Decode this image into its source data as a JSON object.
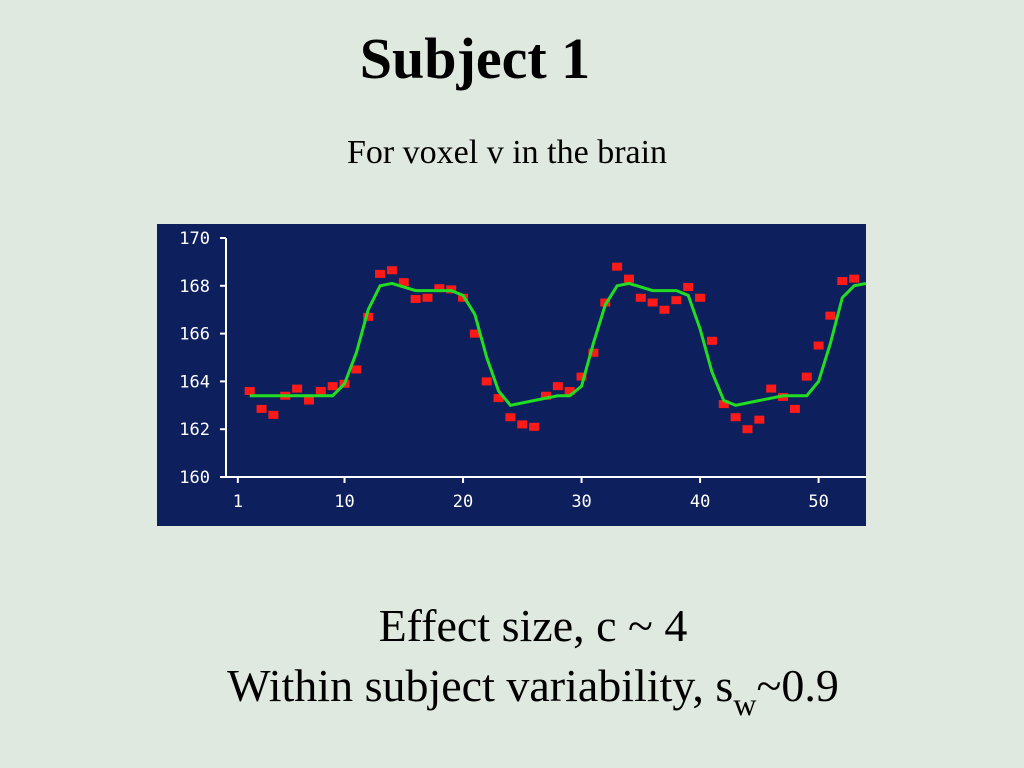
{
  "chart_data": {
    "type": "scatter",
    "title": "Subject 1",
    "subtitle": "For voxel v in the brain",
    "annotations": [
      "Effect size, c ~ 4",
      {
        "text": "Within subject variability, s",
        "sub": "w",
        "after": "~0.9"
      }
    ],
    "xlim": [
      0,
      54
    ],
    "ylim": [
      160,
      170
    ],
    "xticks": [
      1,
      10,
      20,
      30,
      40,
      50
    ],
    "yticks": [
      160,
      162,
      164,
      166,
      168,
      170
    ],
    "background": "#0d1f5c",
    "series": [
      {
        "type": "scatter",
        "color": "#ff1a1a",
        "x": [
          2,
          3,
          4,
          5,
          6,
          7,
          8,
          9,
          10,
          11,
          12,
          13,
          14,
          15,
          16,
          17,
          18,
          19,
          20,
          21,
          22,
          23,
          24,
          25,
          26,
          27,
          28,
          29,
          30,
          31,
          32,
          33,
          34,
          35,
          36,
          37,
          38,
          39,
          40,
          41,
          42,
          43,
          44,
          45,
          46,
          47,
          48,
          49,
          50,
          51,
          52,
          53
        ],
        "values": [
          163.6,
          162.85,
          162.6,
          163.4,
          163.7,
          163.2,
          163.6,
          163.8,
          163.9,
          164.5,
          166.7,
          168.5,
          168.65,
          168.15,
          167.45,
          167.5,
          167.9,
          167.85,
          167.5,
          166.0,
          164.0,
          163.3,
          162.5,
          162.2,
          162.1,
          163.4,
          163.8,
          163.6,
          164.2,
          165.2,
          167.3,
          168.8,
          168.3,
          167.5,
          167.3,
          167.0,
          167.4,
          167.95,
          167.5,
          165.7,
          163.05,
          162.5,
          162.0,
          162.4,
          163.7,
          163.35,
          162.85,
          164.2,
          165.5,
          166.75,
          168.2,
          168.3
        ]
      },
      {
        "type": "line",
        "color": "#22dd22",
        "x": [
          2,
          9,
          10,
          11,
          12,
          13,
          14,
          16,
          19,
          20,
          21,
          22,
          23,
          24,
          26,
          28,
          29,
          30,
          31,
          32,
          33,
          34,
          36,
          38,
          39,
          40,
          41,
          42,
          43,
          45,
          47,
          49,
          50,
          51,
          52,
          53,
          54
        ],
        "values": [
          163.4,
          163.4,
          163.9,
          165.2,
          167.0,
          168.0,
          168.1,
          167.8,
          167.8,
          167.6,
          166.8,
          165.0,
          163.6,
          163.0,
          163.2,
          163.4,
          163.4,
          163.8,
          165.6,
          167.2,
          168.0,
          168.1,
          167.8,
          167.8,
          167.6,
          166.2,
          164.4,
          163.2,
          163.0,
          163.2,
          163.4,
          163.4,
          164.0,
          165.6,
          167.5,
          168.0,
          168.1
        ]
      }
    ]
  }
}
